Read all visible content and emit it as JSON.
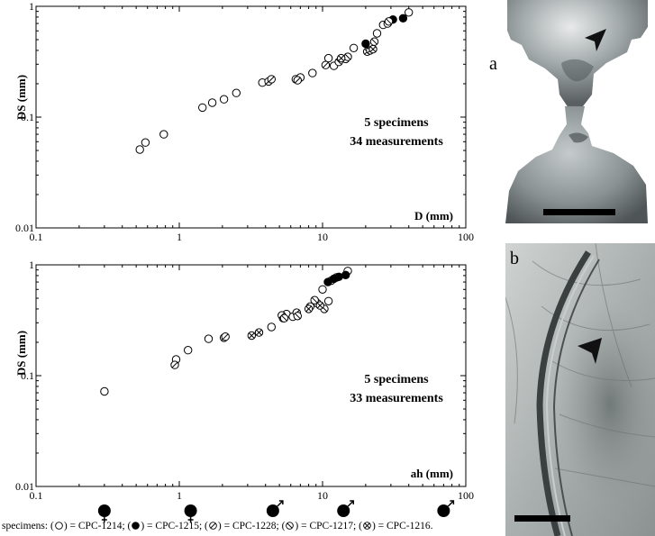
{
  "chart_data": [
    {
      "type": "scatter",
      "x_scale": "log",
      "y_scale": "log",
      "xlim": [
        0.1,
        100
      ],
      "ylim": [
        0.01,
        1
      ],
      "xlabel": "D (mm)",
      "ylabel": "DS (mm)",
      "x_tick_labels": [
        "0.1",
        "1",
        "10",
        "100"
      ],
      "y_tick_labels": [
        "0.01",
        "0.1",
        "1"
      ],
      "annotation_lines": [
        "5 specimens",
        "34 measurements"
      ],
      "series": [
        {
          "marker": "open-circle",
          "points": [
            [
              0.53,
              0.051
            ],
            [
              0.58,
              0.059
            ],
            [
              0.78,
              0.07
            ],
            [
              1.45,
              0.122
            ],
            [
              1.7,
              0.135
            ],
            [
              2.05,
              0.145
            ],
            [
              2.5,
              0.165
            ],
            [
              3.8,
              0.205
            ],
            [
              6.5,
              0.22
            ],
            [
              7.0,
              0.228
            ],
            [
              8.5,
              0.25
            ],
            [
              11.0,
              0.34
            ],
            [
              12.0,
              0.29
            ],
            [
              14.5,
              0.335
            ],
            [
              16.5,
              0.42
            ],
            [
              24.0,
              0.57
            ],
            [
              26.5,
              0.68
            ],
            [
              28.5,
              0.7
            ],
            [
              40.0,
              0.88
            ]
          ]
        },
        {
          "marker": "filled-circle",
          "points": [
            [
              20.0,
              0.46
            ],
            [
              31.0,
              0.76
            ],
            [
              36.5,
              0.78
            ]
          ]
        },
        {
          "marker": "slashed-circle",
          "points": [
            [
              4.2,
              0.21
            ],
            [
              4.4,
              0.22
            ],
            [
              6.7,
              0.215
            ],
            [
              10.5,
              0.295
            ]
          ]
        },
        {
          "marker": "backslashed-circle",
          "points": [
            [
              13.0,
              0.315
            ],
            [
              15.0,
              0.35
            ],
            [
              23.0,
              0.48
            ],
            [
              29.0,
              0.73
            ]
          ]
        },
        {
          "marker": "crossed-circle",
          "points": [
            [
              13.5,
              0.34
            ],
            [
              20.5,
              0.39
            ],
            [
              21.5,
              0.4
            ],
            [
              22.5,
              0.41
            ]
          ]
        }
      ]
    },
    {
      "type": "scatter",
      "x_scale": "log",
      "y_scale": "log",
      "xlim": [
        0.1,
        100
      ],
      "ylim": [
        0.01,
        1
      ],
      "xlabel": "ah (mm)",
      "ylabel": "DS (mm)",
      "x_tick_labels": [
        "0.1",
        "1",
        "10",
        "100"
      ],
      "y_tick_labels": [
        "0.01",
        "0.1",
        "1"
      ],
      "annotation_lines": [
        "5 specimens",
        "33 measurements"
      ],
      "series": [
        {
          "marker": "open-circle",
          "points": [
            [
              0.3,
              0.072
            ],
            [
              0.95,
              0.14
            ],
            [
              1.15,
              0.17
            ],
            [
              1.6,
              0.215
            ],
            [
              4.4,
              0.275
            ],
            [
              5.3,
              0.33
            ],
            [
              5.6,
              0.36
            ],
            [
              6.2,
              0.34
            ],
            [
              10.0,
              0.6
            ],
            [
              11.0,
              0.47
            ],
            [
              11.5,
              0.72
            ],
            [
              12.5,
              0.77
            ],
            [
              15.0,
              0.88
            ]
          ]
        },
        {
          "marker": "filled-circle",
          "points": [
            [
              10.9,
              0.7
            ],
            [
              12.0,
              0.75
            ],
            [
              13.0,
              0.78
            ],
            [
              14.5,
              0.81
            ]
          ]
        },
        {
          "marker": "slashed-circle",
          "points": [
            [
              0.93,
              0.125
            ],
            [
              2.05,
              0.22
            ],
            [
              2.1,
              0.225
            ],
            [
              5.2,
              0.35
            ],
            [
              6.6,
              0.37
            ],
            [
              9.0,
              0.46
            ]
          ]
        },
        {
          "marker": "backslashed-circle",
          "points": [
            [
              5.4,
              0.33
            ],
            [
              6.7,
              0.345
            ],
            [
              8.2,
              0.42
            ],
            [
              9.2,
              0.45
            ],
            [
              10.3,
              0.4
            ],
            [
              8.8,
              0.48
            ]
          ]
        },
        {
          "marker": "crossed-circle",
          "points": [
            [
              3.2,
              0.23
            ],
            [
              3.6,
              0.245
            ],
            [
              8.0,
              0.4
            ],
            [
              9.6,
              0.43
            ]
          ]
        }
      ]
    }
  ],
  "gender_symbols": [
    {
      "sign": "female",
      "x": 0.3
    },
    {
      "sign": "female",
      "x": 1.2
    },
    {
      "sign": "male",
      "x": 4.5
    },
    {
      "sign": "male",
      "x": 14.0
    },
    {
      "sign": "male",
      "x": 70.0
    }
  ],
  "legend": {
    "prefix": "specimens: (",
    "entries": [
      {
        "marker": "open-circle",
        "label": ") = CPC-1214; ("
      },
      {
        "marker": "filled-circle",
        "label": ") = CPC-1215; ("
      },
      {
        "marker": "slashed-circle",
        "label": ") = CPC-1228; ("
      },
      {
        "marker": "backslashed-circle",
        "label": ") = CPC-1217; ("
      },
      {
        "marker": "crossed-circle",
        "label": ") = CPC-1216."
      }
    ]
  },
  "panels": {
    "a": "a",
    "b": "b"
  }
}
